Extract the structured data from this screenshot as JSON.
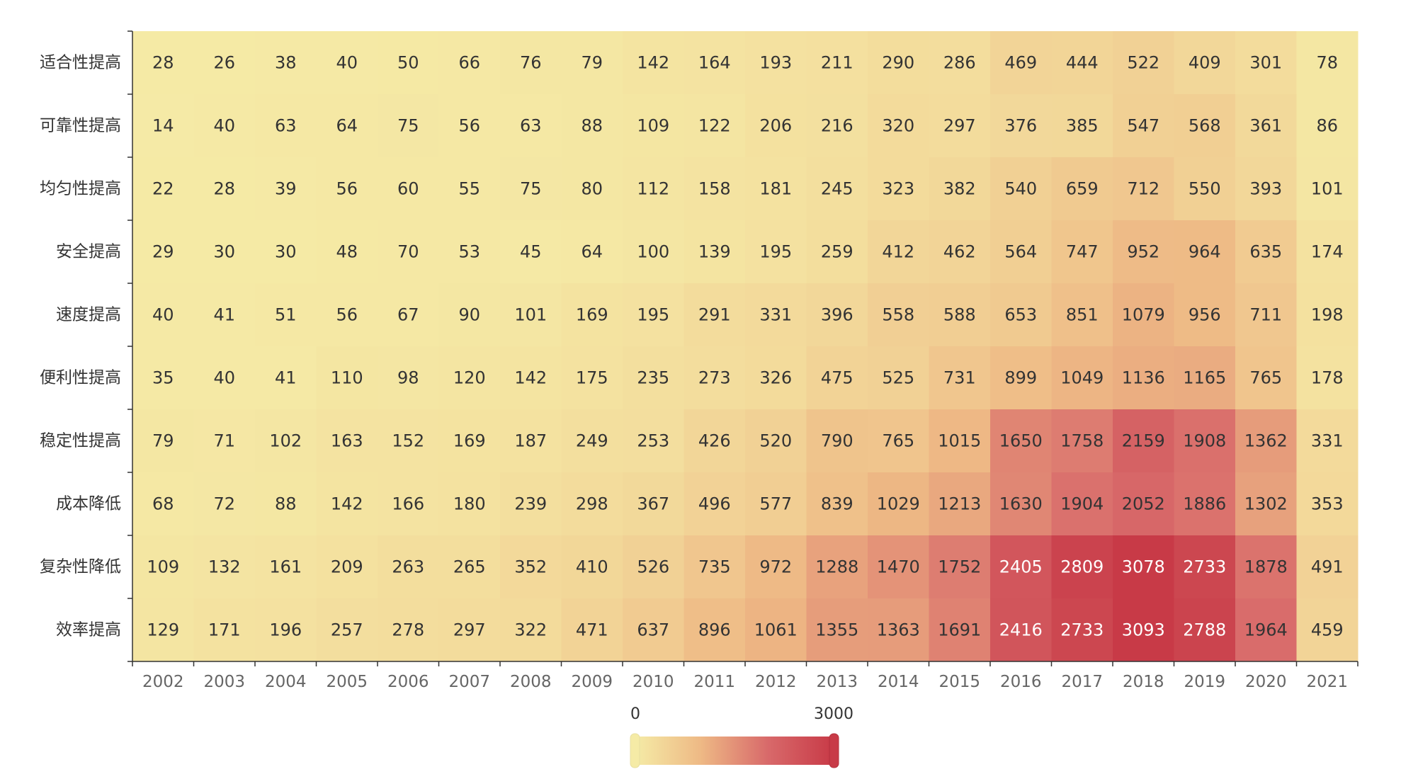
{
  "chart_data": {
    "type": "heatmap",
    "title": "",
    "xlabel": "",
    "ylabel": "",
    "x": [
      "2002",
      "2003",
      "2004",
      "2005",
      "2006",
      "2007",
      "2008",
      "2009",
      "2010",
      "2011",
      "2012",
      "2013",
      "2014",
      "2015",
      "2016",
      "2017",
      "2018",
      "2019",
      "2020",
      "2021"
    ],
    "y": [
      "适合性提高",
      "可靠性提高",
      "均匀性提高",
      "安全提高",
      "速度提高",
      "便利性提高",
      "稳定性提高",
      "成本降低",
      "复杂性降低",
      "效率提高"
    ],
    "values": [
      [
        28,
        26,
        38,
        40,
        50,
        66,
        76,
        79,
        142,
        164,
        193,
        211,
        290,
        286,
        469,
        444,
        522,
        409,
        301,
        78
      ],
      [
        14,
        40,
        63,
        64,
        75,
        56,
        63,
        88,
        109,
        122,
        206,
        216,
        320,
        297,
        376,
        385,
        547,
        568,
        361,
        86
      ],
      [
        22,
        28,
        39,
        56,
        60,
        55,
        75,
        80,
        112,
        158,
        181,
        245,
        323,
        382,
        540,
        659,
        712,
        550,
        393,
        101
      ],
      [
        29,
        30,
        30,
        48,
        70,
        53,
        45,
        64,
        100,
        139,
        195,
        259,
        412,
        462,
        564,
        747,
        952,
        964,
        635,
        174
      ],
      [
        40,
        41,
        51,
        56,
        67,
        90,
        101,
        169,
        195,
        291,
        331,
        396,
        558,
        588,
        653,
        851,
        1079,
        956,
        711,
        198
      ],
      [
        35,
        40,
        41,
        110,
        98,
        120,
        142,
        175,
        235,
        273,
        326,
        475,
        525,
        731,
        899,
        1049,
        1136,
        1165,
        765,
        178
      ],
      [
        79,
        71,
        102,
        163,
        152,
        169,
        187,
        249,
        253,
        426,
        520,
        790,
        765,
        1015,
        1650,
        1758,
        2159,
        1908,
        1362,
        331
      ],
      [
        68,
        72,
        88,
        142,
        166,
        180,
        239,
        298,
        367,
        496,
        577,
        839,
        1029,
        1213,
        1630,
        1904,
        2052,
        1886,
        1302,
        353
      ],
      [
        109,
        132,
        161,
        209,
        263,
        265,
        352,
        410,
        526,
        735,
        972,
        1288,
        1470,
        1752,
        2405,
        2809,
        3078,
        2733,
        1878,
        491
      ],
      [
        129,
        171,
        196,
        257,
        278,
        297,
        322,
        471,
        637,
        896,
        1061,
        1355,
        1363,
        1691,
        2416,
        2733,
        3093,
        2788,
        1964,
        459
      ]
    ],
    "visual_map": {
      "min": 0,
      "max": 3000,
      "min_label": "0",
      "max_label": "3000",
      "colors": [
        "#f5eba6",
        "#eeb985",
        "#d8696a",
        "#c83a47"
      ]
    },
    "label_color_dark": "#333333",
    "label_color_light": "#ffffff",
    "grid": false,
    "legend": "bottom-center"
  }
}
